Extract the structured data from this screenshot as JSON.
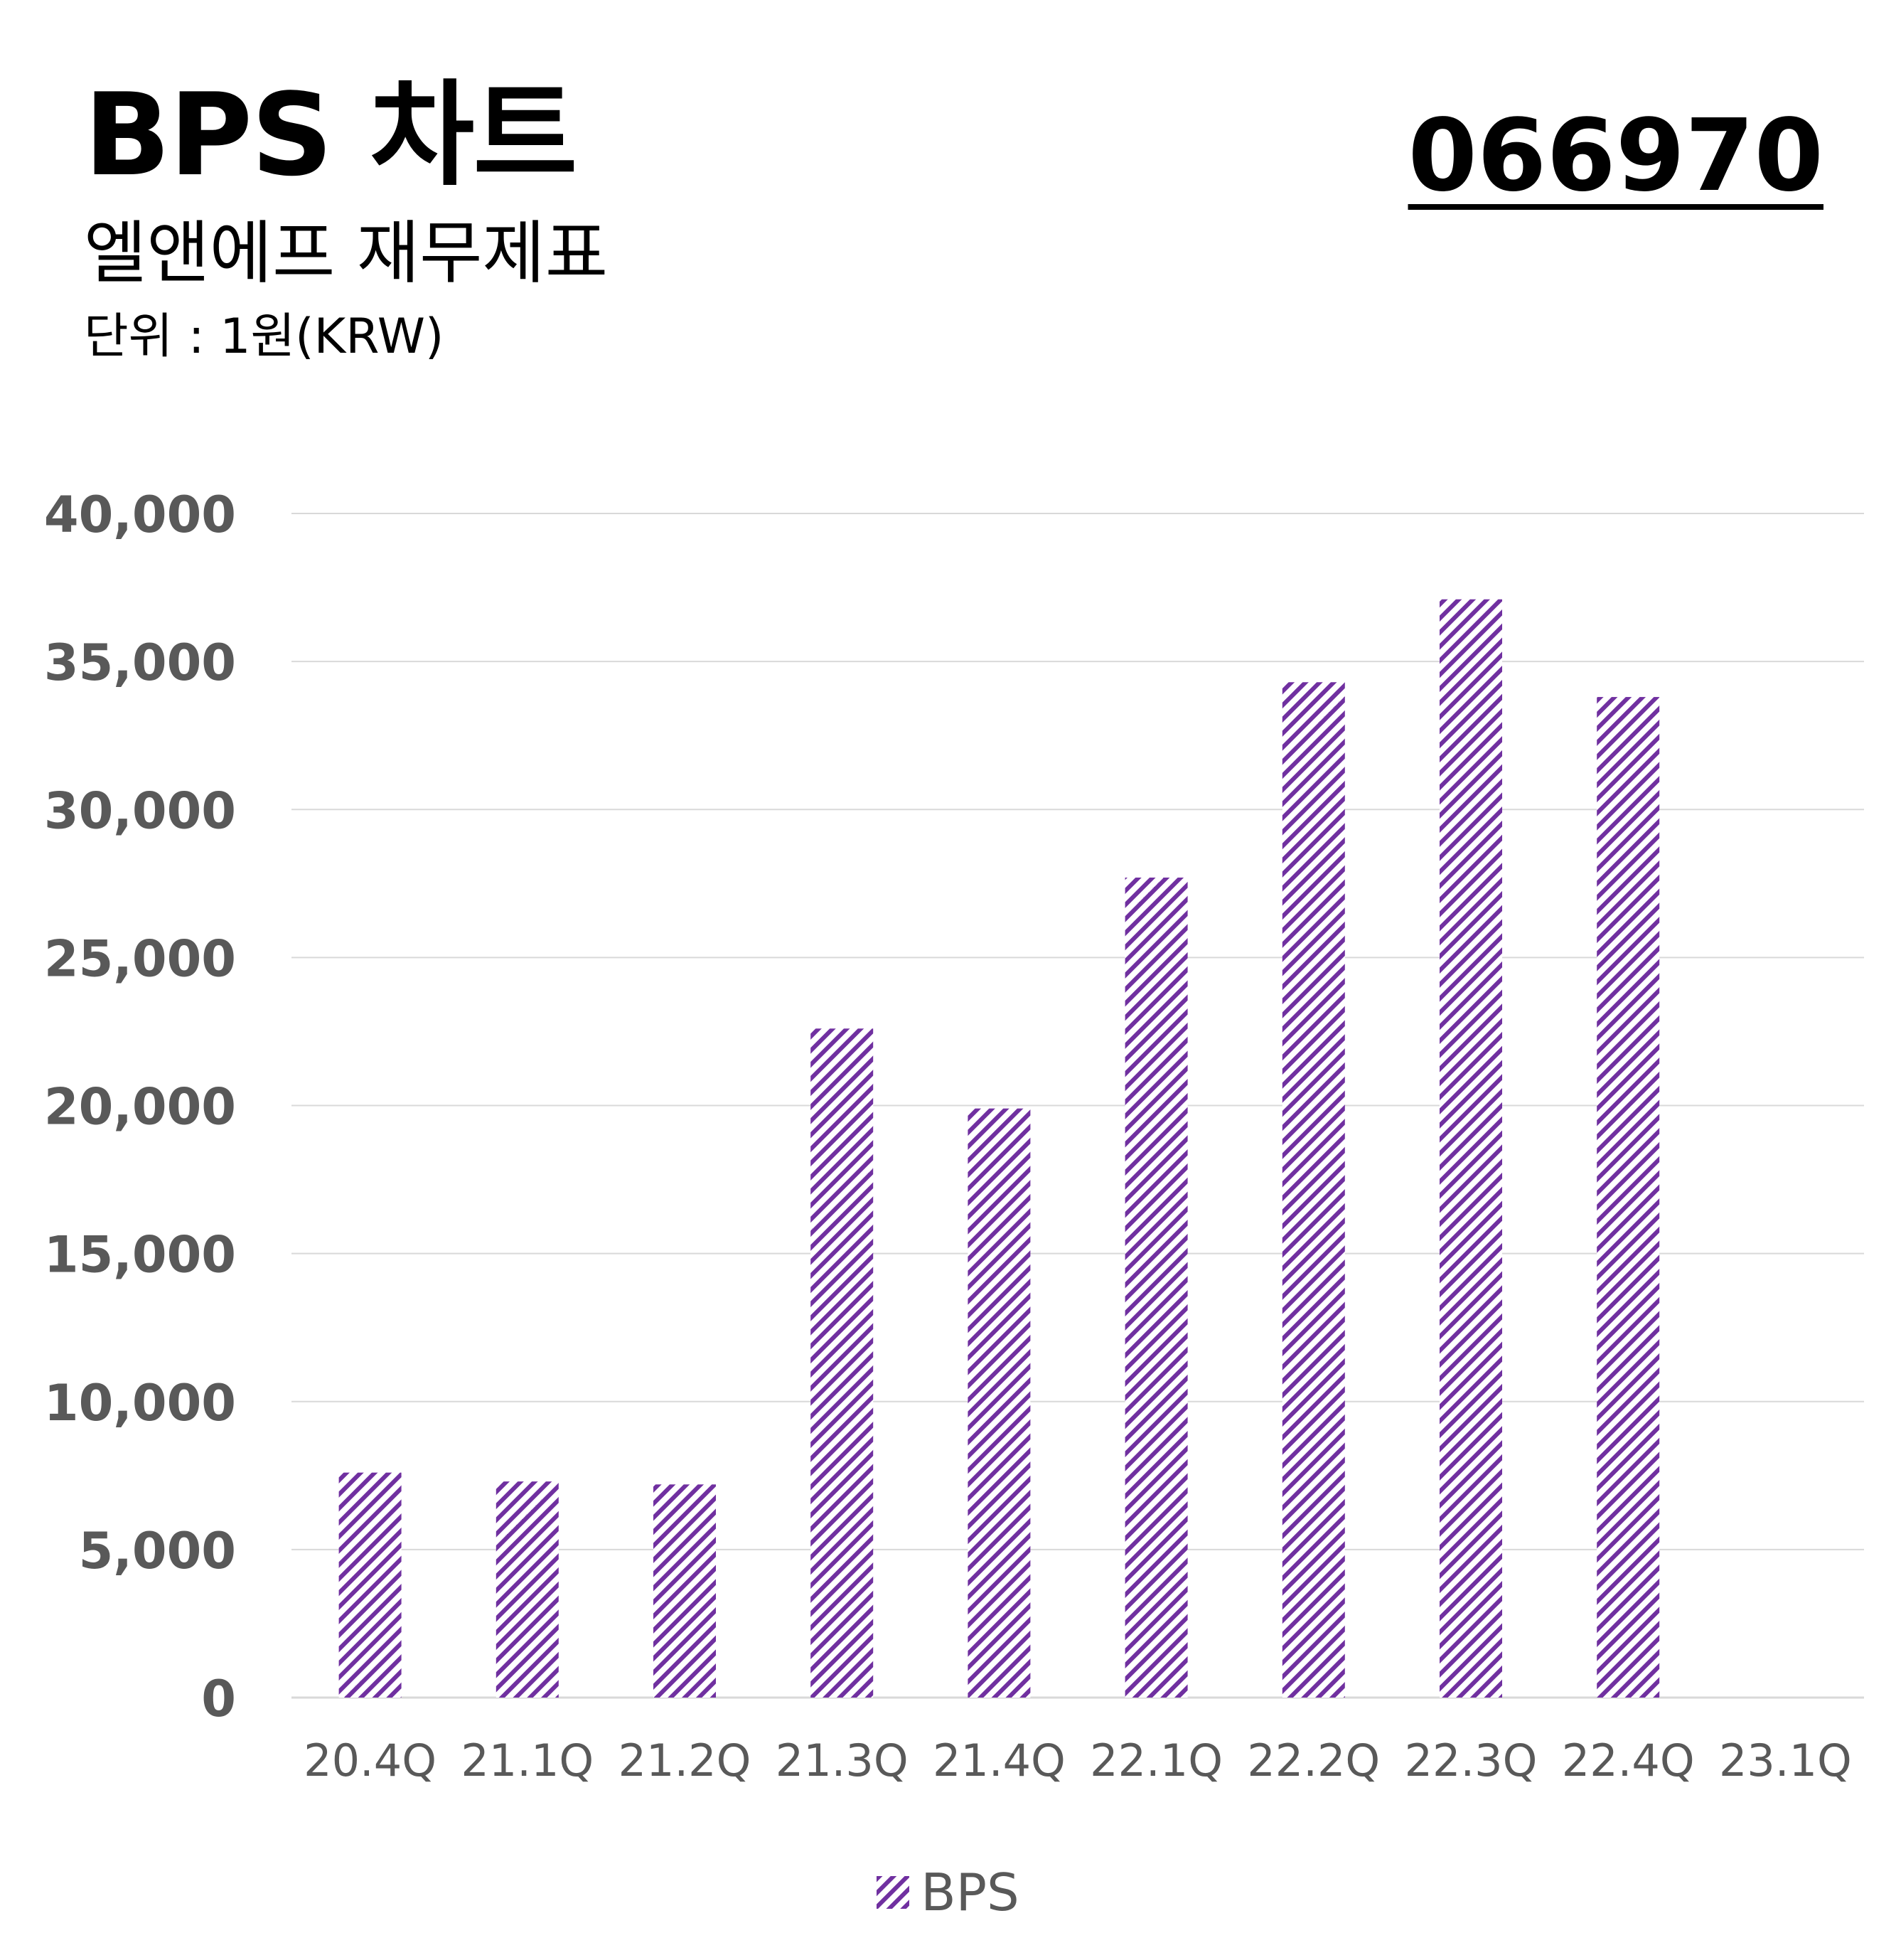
{
  "header": {
    "title": "BPS 차트",
    "subtitle": "엘앤에프 재무제표",
    "unit": "단위 : 1원(KRW)",
    "ticker": "066970"
  },
  "colors": {
    "bar_stripe": "#7030a0",
    "grid": "#d9d9d9",
    "tick_text": "#595959"
  },
  "chart_data": {
    "type": "bar",
    "categories": [
      "20.4Q",
      "21.1Q",
      "21.2Q",
      "21.3Q",
      "21.4Q",
      "22.1Q",
      "22.2Q",
      "22.3Q",
      "22.4Q",
      "23.1Q"
    ],
    "series": [
      {
        "name": "BPS",
        "values": [
          7600,
          7300,
          7200,
          22600,
          19900,
          27700,
          34300,
          37100,
          33800,
          null
        ],
        "pattern": "diagonal-stripes"
      }
    ],
    "ylim": [
      0,
      40000
    ],
    "yticks": [
      0,
      5000,
      10000,
      15000,
      20000,
      25000,
      30000,
      35000,
      40000
    ],
    "ytick_labels": [
      "0",
      "5,000",
      "10,000",
      "15,000",
      "20,000",
      "25,000",
      "30,000",
      "35,000",
      "40,000"
    ],
    "grid": true,
    "legend": "bottom-center"
  }
}
